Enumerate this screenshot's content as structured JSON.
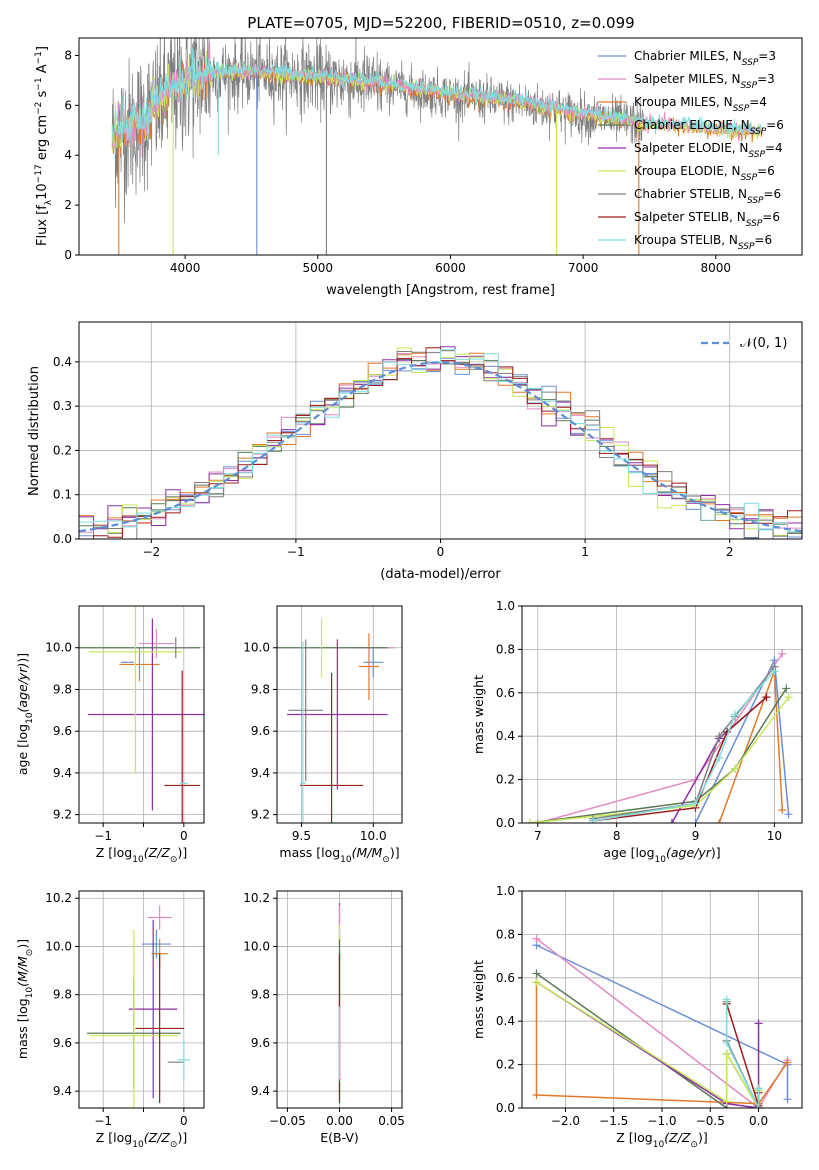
{
  "figure": {
    "title": "PLATE=0705, MJD=52200, FIBERID=0510, z=0.099"
  },
  "colors": {
    "chabrier_miles": "#6a8fd8",
    "salpeter_miles": "#e18bc1",
    "kroupa_miles": "#e07a2b",
    "chabrier_elodie": "#5a7a5a",
    "salpeter_elodie": "#8e2fa8",
    "kroupa_elodie": "#c8e85a",
    "chabrier_stelib": "#7f7f7f",
    "salpeter_stelib": "#9a1c1c",
    "kroupa_stelib": "#7fdede",
    "normal_curve": "#5b8ed6",
    "grid": "#b0b0b0"
  },
  "chart_data": [
    {
      "id": "spectrum",
      "type": "line",
      "xlabel": "wavelength [Angstrom, rest frame]",
      "ylabel": "Flux [f_λ 10^-17 erg cm^-2 s^-1 A^-1]",
      "xlim": [
        3200,
        8650
      ],
      "ylim": [
        0,
        8.7
      ],
      "xticks": [
        "4000",
        "5000",
        "6000",
        "7000",
        "8000"
      ],
      "yticks": [
        "0",
        "2",
        "4",
        "6",
        "8"
      ],
      "grid": false,
      "legend_position": "upper right",
      "series": [
        {
          "key": "chabrier_miles",
          "label": "Chabrier MILES, N",
          "sub": "SSP",
          "suffix": "=3"
        },
        {
          "key": "salpeter_miles",
          "label": "Salpeter MILES, N",
          "sub": "SSP",
          "suffix": "=3"
        },
        {
          "key": "kroupa_miles",
          "label": "Kroupa MILES, N",
          "sub": "SSP",
          "suffix": "=4"
        },
        {
          "key": "chabrier_elodie",
          "label": "Chabrier ELODIE, N",
          "sub": "SSP",
          "suffix": "=6"
        },
        {
          "key": "salpeter_elodie",
          "label": "Salpeter ELODIE, N",
          "sub": "SSP",
          "suffix": "=4"
        },
        {
          "key": "kroupa_elodie",
          "label": "Kroupa ELODIE, N",
          "sub": "SSP",
          "suffix": "=6"
        },
        {
          "key": "chabrier_stelib",
          "label": "Chabrier STELIB, N",
          "sub": "SSP",
          "suffix": "=6"
        },
        {
          "key": "salpeter_stelib",
          "label": "Salpeter STELIB, N",
          "sub": "SSP",
          "suffix": "=6"
        },
        {
          "key": "kroupa_stelib",
          "label": "Kroupa STELIB, N",
          "sub": "SSP",
          "suffix": "=6"
        }
      ],
      "continuum": {
        "x": [
          3450,
          3700,
          3900,
          4100,
          4500,
          5000,
          5500,
          6000,
          6500,
          7000,
          7500,
          8000,
          8300
        ],
        "y": [
          4.7,
          5.4,
          6.6,
          7.2,
          7.3,
          7.1,
          6.8,
          6.4,
          6.1,
          5.6,
          5.2,
          5.0,
          4.9
        ]
      },
      "observed_range": [
        3450,
        7450
      ],
      "model_range": [
        3450,
        8350
      ],
      "absorption_lines": [
        {
          "x": 3500,
          "depth": 0.0,
          "series": "kroupa_miles"
        },
        {
          "x": 3910,
          "depth": 0.0,
          "series": "kroupa_elodie"
        },
        {
          "x": 4540,
          "depth": 0.0,
          "series": "chabrier_miles"
        },
        {
          "x": 5065,
          "depth": 0.0,
          "series": "chabrier_stelib"
        },
        {
          "x": 6800,
          "depth": 0.0,
          "series": "kroupa_elodie"
        },
        {
          "x": 7420,
          "depth": 0.0,
          "series": "kroupa_miles"
        },
        {
          "x": 4250,
          "depth": 4.0,
          "series": "kroupa_stelib"
        }
      ]
    },
    {
      "id": "residuals",
      "type": "histogram",
      "xlabel": "(data-model)/error",
      "ylabel": "Normed distribution",
      "xlim": [
        -2.5,
        2.5
      ],
      "ylim": [
        0,
        0.49
      ],
      "xticks": [
        "−2",
        "−1",
        "0",
        "1",
        "2"
      ],
      "yticks": [
        "0.0",
        "0.1",
        "0.2",
        "0.3",
        "0.4"
      ],
      "grid": true,
      "legend_position": "upper right",
      "legend_label": "𝒩(0, 1)",
      "bin_width": 0.1,
      "series_keys": [
        "chabrier_miles",
        "salpeter_miles",
        "kroupa_miles",
        "chabrier_elodie",
        "salpeter_elodie",
        "kroupa_elodie",
        "chabrier_stelib",
        "salpeter_stelib",
        "kroupa_stelib"
      ]
    },
    {
      "id": "z_age",
      "type": "errorbar",
      "xlabel_main": "Z [log",
      "xlabel_sub": "10",
      "xlabel_rest": "(Z/Z",
      "xlabel_sun": "⊙",
      "xlabel_end": ")]",
      "ylabel": "age  [log10(age/yr)]",
      "xlim": [
        -1.3,
        0.25
      ],
      "ylim": [
        9.16,
        10.2
      ],
      "xticks": [
        -1,
        -0.5,
        0
      ],
      "xtick_labels": [
        "−1",
        "",
        "0"
      ],
      "yticks": [
        9.2,
        9.4,
        9.6,
        9.8,
        10.0
      ],
      "ytick_labels": [
        "9.2",
        "9.4",
        "9.6",
        "9.8",
        "10.0"
      ],
      "points": [
        {
          "key": "chabrier_miles",
          "x": -0.7,
          "xerr": 0.08,
          "y": 9.93,
          "yerr": 0.0
        },
        {
          "key": "salpeter_miles",
          "x": -0.34,
          "xerr": 0.22,
          "y": 10.02,
          "yerr": 0.07
        },
        {
          "key": "kroupa_miles",
          "x": -0.55,
          "xerr": 0.25,
          "y": 9.92,
          "yerr": 0.08
        },
        {
          "key": "chabrier_elodie",
          "x": -1.2,
          "xerr": 1.4,
          "y": 10.0,
          "yerr": 0.0
        },
        {
          "key": "salpeter_elodie",
          "x": -0.39,
          "xerr": 0.8,
          "y": 9.68,
          "yerr": 0.46
        },
        {
          "key": "kroupa_elodie",
          "x": -0.6,
          "xerr": 0.58,
          "y": 9.98,
          "yerr": 0.58
        },
        {
          "key": "chabrier_stelib",
          "x": -0.1,
          "xerr": 0.17,
          "y": 10.0,
          "yerr": 0.05
        },
        {
          "key": "salpeter_stelib",
          "x": -0.02,
          "xerr": 0.22,
          "y": 9.34,
          "yerr": 0.55
        },
        {
          "key": "kroupa_stelib",
          "x": 0.0,
          "xerr": 0.05,
          "y": 9.35,
          "yerr": 0.0
        }
      ]
    },
    {
      "id": "mass_age",
      "type": "errorbar",
      "xlabel_main": "mass [log",
      "xlabel_sub": "10",
      "xlabel_rest": "(M/M",
      "xlabel_sun": "⊙",
      "xlabel_end": ")]",
      "xlim": [
        9.33,
        10.2
      ],
      "ylim": [
        9.16,
        10.2
      ],
      "xticks": [
        9.5,
        10.0
      ],
      "xtick_labels": [
        "9.5",
        "10.0"
      ],
      "yticks": [
        9.2,
        9.4,
        9.6,
        9.8,
        10.0
      ],
      "ytick_labels": [
        "9.2",
        "9.4",
        "9.6",
        "9.8",
        "10.0"
      ],
      "points": [
        {
          "key": "chabrier_miles",
          "x": 10.0,
          "xerr": 0.07,
          "y": 9.93,
          "yerr": 0.07
        },
        {
          "key": "salpeter_miles",
          "x": 10.0,
          "xerr": 0.15,
          "y": 10.0,
          "yerr": 0.0
        },
        {
          "key": "kroupa_miles",
          "x": 9.97,
          "xerr": 0.07,
          "y": 9.91,
          "yerr": 0.16
        },
        {
          "key": "chabrier_elodie",
          "x": 9.65,
          "xerr": 0.45,
          "y": 10.0,
          "yerr": 0.0
        },
        {
          "key": "salpeter_elodie",
          "x": 9.75,
          "xerr": 0.35,
          "y": 9.68,
          "yerr": 0.36
        },
        {
          "key": "kroupa_elodie",
          "x": 9.64,
          "xerr": 0.0,
          "y": 10.0,
          "yerr": 0.14
        },
        {
          "key": "chabrier_stelib",
          "x": 9.53,
          "xerr": 0.12,
          "y": 9.7,
          "yerr": 0.34
        },
        {
          "key": "salpeter_stelib",
          "x": 9.71,
          "xerr": 0.22,
          "y": 9.34,
          "yerr": 0.54
        },
        {
          "key": "kroupa_stelib",
          "x": 9.51,
          "xerr": 0.02,
          "y": 9.35,
          "yerr": 0.68
        }
      ]
    },
    {
      "id": "age_weight",
      "type": "line",
      "xlabel_main": "age  [log",
      "xlabel_sub": "10",
      "xlabel_rest": "(age/yr)]",
      "ylabel": "mass weight",
      "xlim": [
        6.8,
        10.35
      ],
      "ylim": [
        0,
        1.0
      ],
      "xticks": [
        7,
        8,
        9,
        10
      ],
      "xtick_labels": [
        "7",
        "8",
        "9",
        "10"
      ],
      "yticks": [
        0,
        0.2,
        0.4,
        0.6,
        0.8,
        1.0
      ],
      "ytick_labels": [
        "0.0",
        "0.2",
        "0.4",
        "0.6",
        "0.8",
        "1.0"
      ],
      "grid": true,
      "series": [
        {
          "key": "chabrier_miles",
          "x": [
            9.0,
            10.0,
            10.18
          ],
          "y": [
            0.0,
            0.75,
            0.04
          ]
        },
        {
          "key": "salpeter_miles",
          "x": [
            7.0,
            9.0,
            10.1
          ],
          "y": [
            0.0,
            0.2,
            0.78
          ]
        },
        {
          "key": "kroupa_miles",
          "x": [
            9.3,
            10.0,
            10.1
          ],
          "y": [
            0.0,
            0.7,
            0.06
          ]
        },
        {
          "key": "chabrier_elodie",
          "x": [
            6.9,
            9.0,
            9.5,
            10.15
          ],
          "y": [
            0.0,
            0.1,
            0.25,
            0.62
          ]
        },
        {
          "key": "salpeter_elodie",
          "x": [
            8.7,
            9.3,
            9.9
          ],
          "y": [
            0.0,
            0.39,
            0.58
          ]
        },
        {
          "key": "kroupa_elodie",
          "x": [
            6.9,
            9.0,
            9.5,
            10.18
          ],
          "y": [
            0.0,
            0.08,
            0.25,
            0.58
          ]
        },
        {
          "key": "chabrier_stelib",
          "x": [
            7.7,
            9.0,
            9.3,
            9.5,
            10.0
          ],
          "y": [
            0.02,
            0.09,
            0.4,
            0.49,
            0.72
          ]
        },
        {
          "key": "salpeter_stelib",
          "x": [
            7.7,
            9.0,
            9.4,
            9.9
          ],
          "y": [
            0.01,
            0.07,
            0.42,
            0.58
          ]
        },
        {
          "key": "kroupa_stelib",
          "x": [
            7.7,
            9.0,
            9.3,
            9.5,
            10.0
          ],
          "y": [
            0.01,
            0.09,
            0.3,
            0.5,
            0.7
          ]
        }
      ]
    },
    {
      "id": "z_mass",
      "type": "errorbar",
      "xlabel_main": "Z [log",
      "xlabel_sub": "10",
      "xlabel_rest": "(Z/Z",
      "xlabel_sun": "⊙",
      "xlabel_end": ")]",
      "ylabel": "mass [log10(M/M⊙)]",
      "xlim": [
        -1.3,
        0.25
      ],
      "ylim": [
        9.33,
        10.23
      ],
      "xticks": [
        -1,
        -0.5,
        0
      ],
      "xtick_labels": [
        "−1",
        "",
        "0"
      ],
      "yticks": [
        9.4,
        9.6,
        9.8,
        10.0,
        10.2
      ],
      "ytick_labels": [
        "9.4",
        "9.6",
        "9.8",
        "10.0",
        "10.2"
      ],
      "points": [
        {
          "key": "chabrier_miles",
          "x": -0.34,
          "xerr": 0.18,
          "y": 10.01,
          "yerr": 0.06
        },
        {
          "key": "salpeter_miles",
          "x": -0.3,
          "xerr": 0.15,
          "y": 10.12,
          "yerr": 0.05
        },
        {
          "key": "kroupa_miles",
          "x": -0.3,
          "xerr": 0.1,
          "y": 9.97,
          "yerr": 0.06
        },
        {
          "key": "chabrier_elodie",
          "x": -0.62,
          "xerr": 0.58,
          "y": 9.64,
          "yerr": 0.23
        },
        {
          "key": "salpeter_elodie",
          "x": -0.38,
          "xerr": 0.3,
          "y": 9.74,
          "yerr": 0.37
        },
        {
          "key": "kroupa_elodie",
          "x": -0.62,
          "xerr": 0.55,
          "y": 9.63,
          "yerr": 0.44
        },
        {
          "key": "chabrier_stelib",
          "x": -0.1,
          "xerr": 0.1,
          "y": 9.52,
          "yerr": 0.0
        },
        {
          "key": "salpeter_stelib",
          "x": -0.3,
          "xerr": 0.3,
          "y": 9.66,
          "yerr": 0.31
        },
        {
          "key": "kroupa_stelib",
          "x": 0.0,
          "xerr": 0.08,
          "y": 9.53,
          "yerr": 0.08
        }
      ]
    },
    {
      "id": "ebv_mass",
      "type": "errorbar",
      "xlabel": "E(B-V)",
      "xlim": [
        -0.06,
        0.06
      ],
      "ylim": [
        9.33,
        10.23
      ],
      "xticks": [
        -0.05,
        0.0,
        0.05
      ],
      "xtick_labels": [
        "−0.05",
        "0.00",
        "0.05"
      ],
      "yticks": [
        9.4,
        9.6,
        9.8,
        10.0,
        10.2
      ],
      "ytick_labels": [
        "9.4",
        "9.6",
        "9.8",
        "10.0",
        "10.2"
      ],
      "points": [
        {
          "key": "salpeter_elodie",
          "x": 0.0,
          "xerr": 0.0,
          "y": 9.77,
          "yerr": 0.41
        },
        {
          "key": "salpeter_miles",
          "x": 0.0,
          "xerr": 0.0,
          "y": 10.12,
          "yerr": 0.05
        },
        {
          "key": "kroupa_elodie",
          "x": 0.0,
          "xerr": 0.0,
          "y": 9.73,
          "yerr": 0.36
        },
        {
          "key": "chabrier_elodie",
          "x": 0.0,
          "xerr": 0.0,
          "y": 9.8,
          "yerr": 0.23
        },
        {
          "key": "salpeter_stelib",
          "x": 0.0,
          "xerr": 0.0,
          "y": 9.66,
          "yerr": 0.31
        },
        {
          "key": "chabrier_stelib",
          "x": 0.0,
          "xerr": 0.0,
          "y": 9.52,
          "yerr": 0.08
        },
        {
          "key": "kroupa_stelib",
          "x": 0.0,
          "xerr": 0.0,
          "y": 9.6,
          "yerr": 0.15
        }
      ]
    },
    {
      "id": "z_weight",
      "type": "line",
      "xlabel_main": "Z [log",
      "xlabel_sub": "10",
      "xlabel_rest": "(Z/Z",
      "xlabel_sun": "⊙",
      "xlabel_end": ")]",
      "ylabel": "mass weight",
      "xlim": [
        -2.45,
        0.45
      ],
      "ylim": [
        0,
        1.0
      ],
      "xticks": [
        -2.0,
        -1.5,
        -1.0,
        -0.5,
        0.0
      ],
      "xtick_labels": [
        "−2.0",
        "−1.5",
        "−1.0",
        "−0.5",
        "0.0"
      ],
      "yticks": [
        0,
        0.2,
        0.4,
        0.6,
        0.8,
        1.0
      ],
      "ytick_labels": [
        "0.0",
        "0.2",
        "0.4",
        "0.6",
        "0.8",
        "1.0"
      ],
      "grid": true,
      "series": [
        {
          "key": "chabrier_miles",
          "x": [
            -2.3,
            0.3,
            0.3
          ],
          "y": [
            0.75,
            0.2,
            0.04
          ]
        },
        {
          "key": "salpeter_miles",
          "x": [
            -2.3,
            0.0,
            0.3
          ],
          "y": [
            0.78,
            0.0,
            0.22
          ]
        },
        {
          "key": "kroupa_miles",
          "x": [
            -2.3,
            -2.3,
            0.0,
            0.3
          ],
          "y": [
            0.58,
            0.06,
            0.02,
            0.21
          ]
        },
        {
          "key": "chabrier_elodie",
          "x": [
            -2.3,
            -0.33,
            -0.33,
            0.0,
            0.0,
            0.0
          ],
          "y": [
            0.62,
            0.0,
            0.25,
            0.0,
            0.09,
            0.0
          ]
        },
        {
          "key": "salpeter_elodie",
          "x": [
            -2.3,
            -0.33,
            0.0,
            0.0
          ],
          "y": [
            0.58,
            0.02,
            0.0,
            0.39
          ]
        },
        {
          "key": "kroupa_elodie",
          "x": [
            -2.3,
            -0.33,
            -0.33,
            0.0,
            0.0
          ],
          "y": [
            0.58,
            0.03,
            0.25,
            0.0,
            0.08
          ]
        },
        {
          "key": "chabrier_stelib",
          "x": [
            -0.33,
            -0.33,
            0.0,
            0.0
          ],
          "y": [
            0.49,
            0.31,
            0.0,
            0.09
          ]
        },
        {
          "key": "salpeter_stelib",
          "x": [
            -0.33,
            0.0,
            0.0
          ],
          "y": [
            0.48,
            0.01,
            0.07
          ]
        },
        {
          "key": "kroupa_stelib",
          "x": [
            -0.33,
            -0.33,
            0.0,
            0.0
          ],
          "y": [
            0.5,
            0.3,
            0.0,
            0.09
          ]
        }
      ]
    }
  ]
}
